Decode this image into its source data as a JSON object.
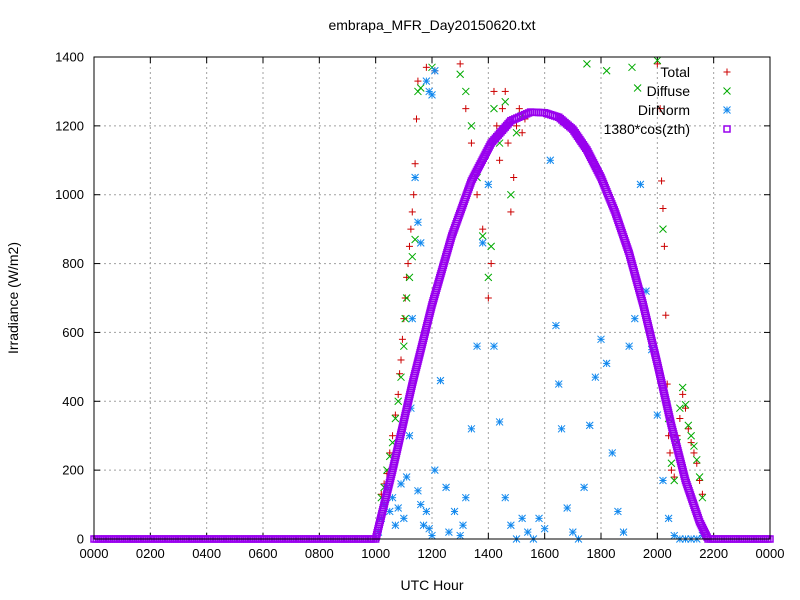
{
  "chart_data": {
    "type": "scatter",
    "title": "embrapa_MFR_Day20150620.txt",
    "xlabel": "UTC Hour",
    "ylabel": "Irradiance (W/m2)",
    "xlim": [
      0,
      24
    ],
    "ylim": [
      0,
      1400
    ],
    "grid": true,
    "legend_position": "top-right",
    "x_ticks": [
      {
        "value": 0,
        "label": "0000"
      },
      {
        "value": 2,
        "label": "0200"
      },
      {
        "value": 4,
        "label": "0400"
      },
      {
        "value": 6,
        "label": "0600"
      },
      {
        "value": 8,
        "label": "0800"
      },
      {
        "value": 10,
        "label": "1000"
      },
      {
        "value": 12,
        "label": "1200"
      },
      {
        "value": 14,
        "label": "1400"
      },
      {
        "value": 16,
        "label": "1600"
      },
      {
        "value": 18,
        "label": "1800"
      },
      {
        "value": 20,
        "label": "2000"
      },
      {
        "value": 22,
        "label": "2200"
      },
      {
        "value": 24,
        "label": "0000"
      }
    ],
    "y_ticks": [
      0,
      200,
      400,
      600,
      800,
      1000,
      1200,
      1400
    ],
    "series": [
      {
        "name": "Total",
        "marker": "plus",
        "color": "#cc0000",
        "points": [
          [
            10.2,
            130
          ],
          [
            10.3,
            160
          ],
          [
            10.4,
            190
          ],
          [
            10.5,
            250
          ],
          [
            10.6,
            300
          ],
          [
            10.7,
            360
          ],
          [
            10.8,
            420
          ],
          [
            10.85,
            480
          ],
          [
            10.9,
            520
          ],
          [
            10.95,
            580
          ],
          [
            11.0,
            640
          ],
          [
            11.05,
            700
          ],
          [
            11.1,
            760
          ],
          [
            11.15,
            800
          ],
          [
            11.2,
            850
          ],
          [
            11.25,
            900
          ],
          [
            11.3,
            950
          ],
          [
            11.35,
            1000
          ],
          [
            11.4,
            1090
          ],
          [
            11.45,
            1220
          ],
          [
            11.5,
            1330
          ],
          [
            11.8,
            1370
          ],
          [
            12.1,
            1360
          ],
          [
            13.0,
            1380
          ],
          [
            13.2,
            1250
          ],
          [
            13.4,
            1150
          ],
          [
            13.6,
            1000
          ],
          [
            13.8,
            900
          ],
          [
            14.0,
            700
          ],
          [
            14.1,
            800
          ],
          [
            14.2,
            1300
          ],
          [
            14.3,
            1200
          ],
          [
            14.4,
            1100
          ],
          [
            14.5,
            1250
          ],
          [
            14.6,
            1300
          ],
          [
            14.7,
            1150
          ],
          [
            14.8,
            950
          ],
          [
            14.9,
            1050
          ],
          [
            15.0,
            1200
          ],
          [
            15.1,
            1250
          ],
          [
            15.2,
            1180
          ],
          [
            15.3,
            1220
          ],
          [
            20.0,
            1380
          ],
          [
            20.1,
            1250
          ],
          [
            20.15,
            1040
          ],
          [
            20.2,
            960
          ],
          [
            20.25,
            850
          ],
          [
            20.3,
            650
          ],
          [
            20.35,
            450
          ],
          [
            20.4,
            300
          ],
          [
            20.45,
            250
          ],
          [
            20.5,
            200
          ],
          [
            20.6,
            180
          ],
          [
            20.7,
            300
          ],
          [
            20.8,
            350
          ],
          [
            20.9,
            420
          ],
          [
            21.0,
            380
          ],
          [
            21.1,
            320
          ],
          [
            21.2,
            280
          ],
          [
            21.3,
            250
          ],
          [
            21.4,
            220
          ],
          [
            21.5,
            170
          ],
          [
            21.6,
            130
          ]
        ]
      },
      {
        "name": "Diffuse",
        "marker": "cross",
        "color": "#00aa00",
        "points": [
          [
            10.2,
            120
          ],
          [
            10.3,
            150
          ],
          [
            10.4,
            200
          ],
          [
            10.5,
            240
          ],
          [
            10.6,
            280
          ],
          [
            10.7,
            350
          ],
          [
            10.8,
            400
          ],
          [
            10.9,
            470
          ],
          [
            11.0,
            560
          ],
          [
            11.05,
            640
          ],
          [
            11.1,
            700
          ],
          [
            11.2,
            760
          ],
          [
            11.3,
            820
          ],
          [
            11.4,
            870
          ],
          [
            11.5,
            1300
          ],
          [
            11.6,
            1310
          ],
          [
            12.0,
            1370
          ],
          [
            13.0,
            1350
          ],
          [
            13.2,
            1300
          ],
          [
            13.4,
            1200
          ],
          [
            13.6,
            1050
          ],
          [
            13.8,
            880
          ],
          [
            14.0,
            760
          ],
          [
            14.1,
            850
          ],
          [
            14.2,
            1250
          ],
          [
            14.4,
            1150
          ],
          [
            14.6,
            1270
          ],
          [
            14.8,
            1000
          ],
          [
            15.0,
            1180
          ],
          [
            15.2,
            1230
          ],
          [
            17.5,
            1380
          ],
          [
            18.2,
            1360
          ],
          [
            19.1,
            1370
          ],
          [
            19.3,
            1310
          ],
          [
            20.0,
            1390
          ],
          [
            20.2,
            900
          ],
          [
            20.4,
            350
          ],
          [
            20.5,
            220
          ],
          [
            20.6,
            170
          ],
          [
            20.7,
            280
          ],
          [
            20.8,
            380
          ],
          [
            20.9,
            440
          ],
          [
            21.0,
            390
          ],
          [
            21.1,
            330
          ],
          [
            21.2,
            300
          ],
          [
            21.3,
            270
          ],
          [
            21.4,
            230
          ],
          [
            21.5,
            180
          ],
          [
            21.6,
            120
          ]
        ]
      },
      {
        "name": "DirNorm",
        "marker": "star",
        "color": "#1188ee",
        "points": [
          [
            10.1,
            20
          ],
          [
            10.2,
            60
          ],
          [
            10.3,
            100
          ],
          [
            10.4,
            150
          ],
          [
            10.5,
            80
          ],
          [
            10.6,
            120
          ],
          [
            10.7,
            40
          ],
          [
            10.8,
            90
          ],
          [
            10.9,
            160
          ],
          [
            11.0,
            60
          ],
          [
            11.1,
            180
          ],
          [
            11.2,
            300
          ],
          [
            11.25,
            380
          ],
          [
            11.3,
            640
          ],
          [
            11.4,
            1050
          ],
          [
            11.5,
            920
          ],
          [
            11.6,
            860
          ],
          [
            11.8,
            1330
          ],
          [
            11.9,
            1300
          ],
          [
            12.0,
            1290
          ],
          [
            12.1,
            1360
          ],
          [
            11.5,
            140
          ],
          [
            11.6,
            100
          ],
          [
            11.7,
            40
          ],
          [
            11.8,
            80
          ],
          [
            11.9,
            30
          ],
          [
            12.0,
            10
          ],
          [
            12.1,
            200
          ],
          [
            12.3,
            460
          ],
          [
            12.5,
            150
          ],
          [
            12.6,
            20
          ],
          [
            12.8,
            80
          ],
          [
            13.0,
            10
          ],
          [
            13.1,
            40
          ],
          [
            13.2,
            120
          ],
          [
            13.4,
            320
          ],
          [
            13.6,
            560
          ],
          [
            13.8,
            860
          ],
          [
            14.0,
            1030
          ],
          [
            14.2,
            560
          ],
          [
            14.4,
            340
          ],
          [
            14.6,
            120
          ],
          [
            14.8,
            40
          ],
          [
            15.0,
            0
          ],
          [
            15.2,
            60
          ],
          [
            15.4,
            20
          ],
          [
            15.6,
            0
          ],
          [
            15.8,
            60
          ],
          [
            16.0,
            30
          ],
          [
            16.2,
            1100
          ],
          [
            16.4,
            620
          ],
          [
            16.5,
            450
          ],
          [
            16.6,
            320
          ],
          [
            16.8,
            90
          ],
          [
            17.0,
            20
          ],
          [
            17.2,
            0
          ],
          [
            17.4,
            150
          ],
          [
            17.6,
            330
          ],
          [
            17.8,
            470
          ],
          [
            18.0,
            580
          ],
          [
            18.2,
            510
          ],
          [
            18.4,
            250
          ],
          [
            18.6,
            80
          ],
          [
            18.8,
            20
          ],
          [
            19.0,
            560
          ],
          [
            19.2,
            640
          ],
          [
            19.4,
            1030
          ],
          [
            19.6,
            720
          ],
          [
            19.8,
            550
          ],
          [
            20.0,
            360
          ],
          [
            20.2,
            170
          ],
          [
            20.4,
            60
          ],
          [
            20.6,
            10
          ],
          [
            20.8,
            0
          ],
          [
            21.0,
            0
          ],
          [
            21.2,
            0
          ],
          [
            21.4,
            0
          ],
          [
            21.6,
            10
          ]
        ]
      },
      {
        "name": "1380*cos(zth)",
        "marker": "square",
        "color": "#9900ee",
        "points": [
          [
            0,
            0
          ],
          [
            10,
            0
          ],
          [
            10.6,
            200
          ],
          [
            11.3,
            450
          ],
          [
            12.0,
            680
          ],
          [
            12.7,
            880
          ],
          [
            13.4,
            1040
          ],
          [
            14.1,
            1150
          ],
          [
            14.8,
            1215
          ],
          [
            15.5,
            1240
          ],
          [
            16.0,
            1238
          ],
          [
            16.5,
            1225
          ],
          [
            17.0,
            1190
          ],
          [
            17.5,
            1130
          ],
          [
            18.0,
            1050
          ],
          [
            18.5,
            950
          ],
          [
            19.0,
            830
          ],
          [
            19.5,
            680
          ],
          [
            20.0,
            510
          ],
          [
            20.5,
            330
          ],
          [
            21.0,
            170
          ],
          [
            21.5,
            50
          ],
          [
            21.8,
            0
          ],
          [
            24,
            0
          ]
        ]
      }
    ]
  }
}
